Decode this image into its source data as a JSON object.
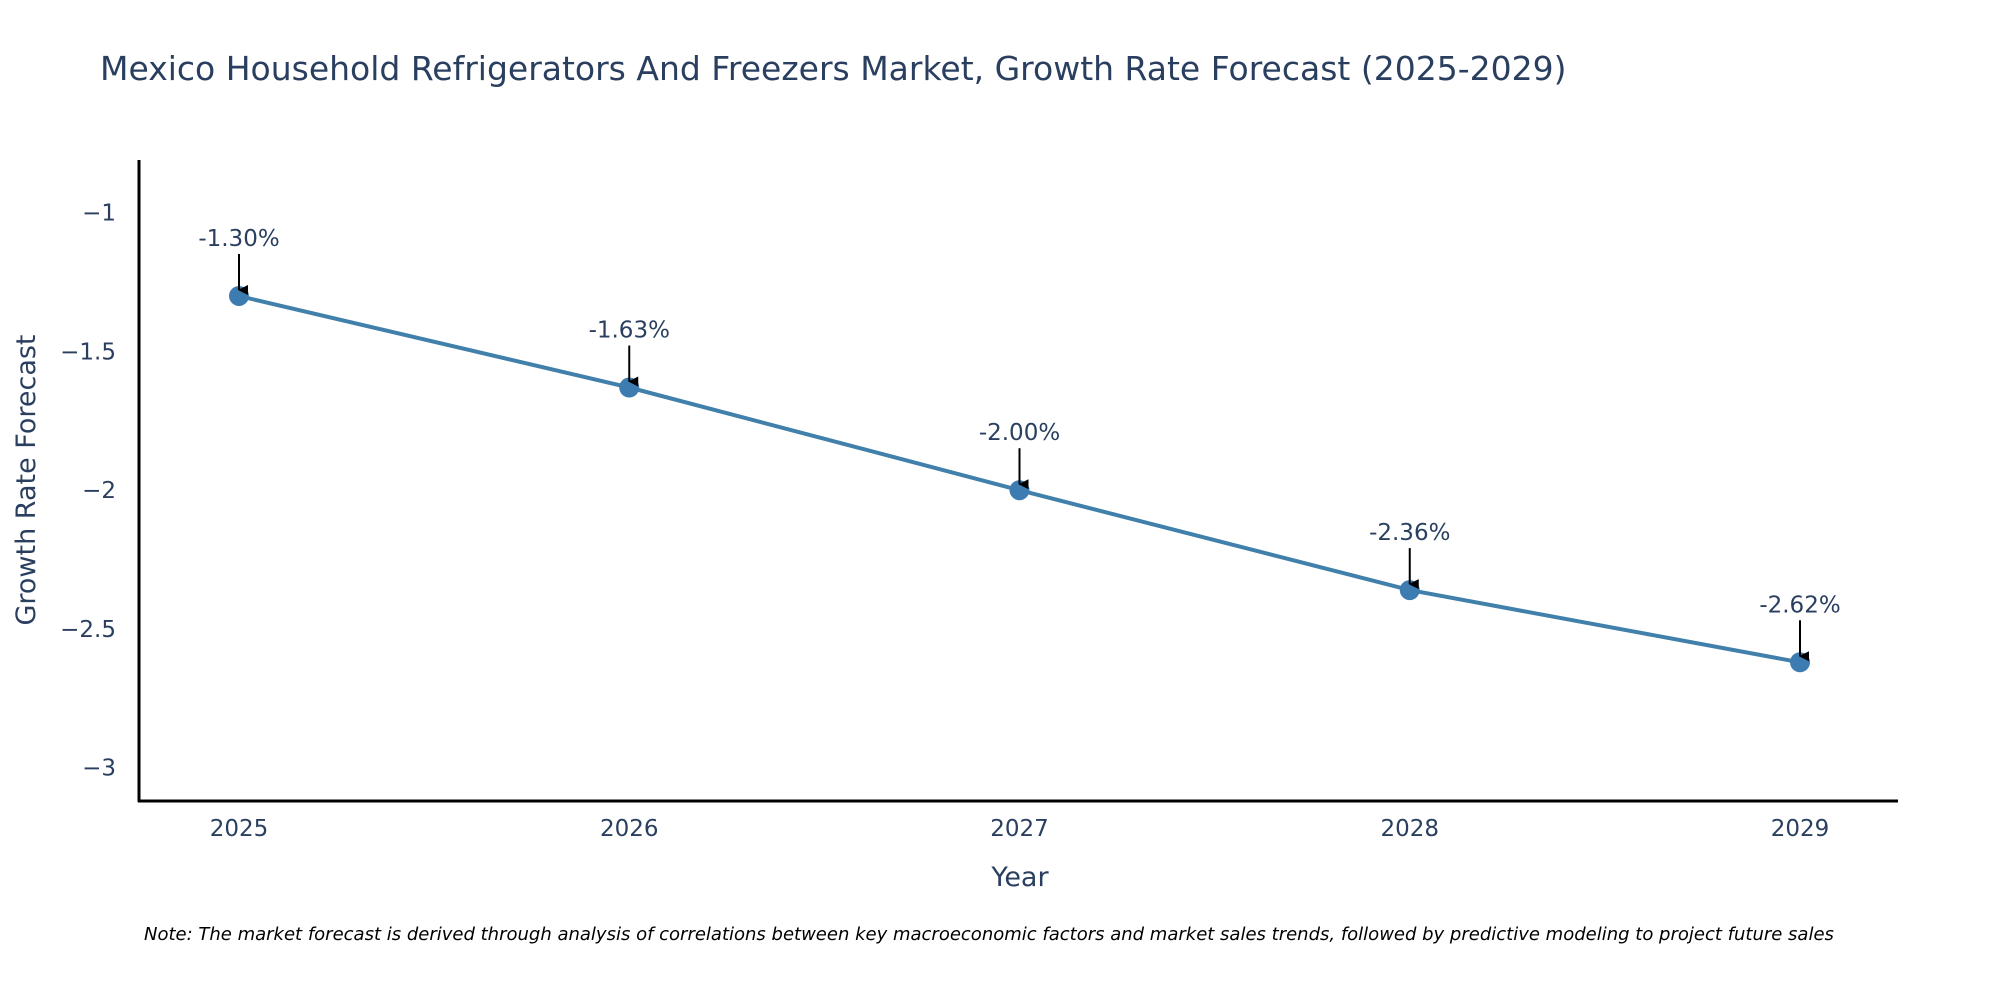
{
  "chart_data": {
    "type": "line",
    "title": "Mexico Household Refrigerators And Freezers Market, Growth Rate Forecast (2025-2029)",
    "xlabel": "Year",
    "ylabel": "Growth Rate Forecast",
    "categories": [
      "2025",
      "2026",
      "2027",
      "2028",
      "2029"
    ],
    "series": [
      {
        "name": "Growth Rate Forecast",
        "values": [
          -1.3,
          -1.63,
          -2.0,
          -2.36,
          -2.62
        ],
        "labels": [
          "-1.30%",
          "-1.63%",
          "-2.00%",
          "-2.36%",
          "-2.62%"
        ]
      }
    ],
    "yticks": [
      -1,
      -1.5,
      -2,
      -2.5,
      -3
    ],
    "ytick_labels": [
      "−1",
      "−1.5",
      "−2",
      "−2.5",
      "−3"
    ],
    "ylim": [
      -3.12,
      -0.81
    ],
    "grid": false,
    "line_color": "#4180ab",
    "marker_color": "#3d7cb0",
    "arrow_color": "#000000",
    "note": "Note: The market forecast is derived through analysis of correlations between key macroeconomic factors and market sales trends, followed by predictive modeling to project future sales"
  }
}
